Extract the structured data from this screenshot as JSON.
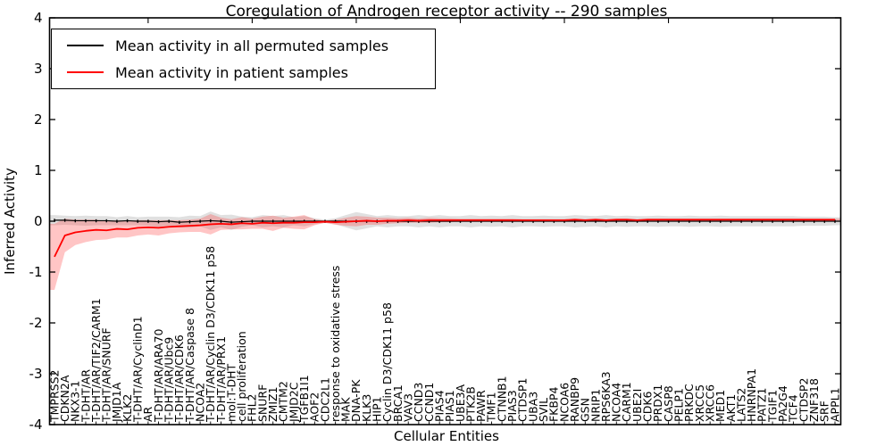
{
  "title": "Coregulation of Androgen receptor activity -- 290 samples",
  "legend": [
    {
      "label": "Mean activity in all permuted samples",
      "color": "#000000"
    },
    {
      "label": "Mean activity in patient samples",
      "color": "#ff0000"
    }
  ],
  "chart_data": {
    "type": "line",
    "title": "Coregulation of Androgen receptor activity -- 290 samples",
    "xlabel": "Cellular Entities",
    "ylabel": "Inferred Activity",
    "ylim": [
      -4,
      4
    ],
    "yticks": [
      "4",
      "3",
      "2",
      "1",
      "0",
      "-1",
      "-2",
      "-3",
      "-4"
    ],
    "ytick_values": [
      4,
      3,
      2,
      1,
      0,
      -1,
      -2,
      -3,
      -4
    ],
    "grid": false,
    "legend_position": "upper left",
    "categories": [
      "TMPRSS2",
      "CDKN2A",
      "NKX3-1",
      "T-DHT/AR",
      "T-DHT/AR/TIF2/CARM1",
      "T-DHT/AR/SNURF",
      "JMJD1A",
      "KLK2",
      "T-DHT/AR/CyclinD1",
      "AR",
      "T-DHT/AR/ARA70",
      "T-DHT/AR/Ubc9",
      "T-DHT/AR/CDK6",
      "T-DHT/AR/Caspase 8",
      "NCOA2",
      "T-DHT/AR/Cyclin D3/CDK11 p58",
      "T-DHT/AR/PRX1",
      "mol:T-DHT",
      "cell proliferation",
      "FHL2",
      "SNURF",
      "ZMIZ1",
      "CMTM2",
      "JMJD2C",
      "TGFB1I1",
      "AOF2",
      "CDC2L1",
      "response to oxidative stress",
      "MAK",
      "DNA-PK",
      "KLK3",
      "HIP1",
      "Cyclin D3/CDK11 p58",
      "BRCA1",
      "VAV3",
      "CCND3",
      "CCND1",
      "PIAS4",
      "PIAS1",
      "UBE3A",
      "PTK2B",
      "PAWR",
      "TMF1",
      "CTNNB1",
      "PIAS3",
      "CTDSP1",
      "UBA3",
      "SVIL",
      "FKBP4",
      "NCOA6",
      "RANBP9",
      "GSN",
      "NRIP1",
      "RPS6KA3",
      "NCOA4",
      "CARM1",
      "UBE2I",
      "CDK6",
      "PRDX1",
      "CASP8",
      "PELP1",
      "PRKDC",
      "XRCC5",
      "XRCC6",
      "MED1",
      "AKT1",
      "LATS2",
      "HNRNPA1",
      "PATZ1",
      "TGIF1",
      "PA2G4",
      "TCF4",
      "CTDSP2",
      "ZNF318",
      "SRF",
      "APPL1"
    ],
    "series": [
      {
        "name": "Mean activity in all permuted samples",
        "color": "#000000",
        "band_color": "#999999",
        "band_opacity": 0.3,
        "values": [
          0.02,
          0.02,
          0.01,
          0.01,
          0.01,
          0.01,
          0.0,
          0.01,
          0.0,
          0.0,
          -0.01,
          0.0,
          -0.02,
          -0.01,
          0.0,
          0.01,
          0.0,
          -0.02,
          -0.01,
          0.0,
          0.0,
          0.0,
          0.0,
          0.0,
          0.0,
          0.0,
          0.0,
          0.0,
          0.0,
          0.0,
          0.0,
          0.0,
          0.0,
          0.0,
          0.0,
          0.0,
          0.0,
          0.0,
          0.0,
          0.0,
          0.0,
          0.0,
          0.0,
          0.0,
          0.0,
          0.0,
          0.0,
          0.0,
          0.0,
          0.0,
          0.0,
          0.0,
          0.0,
          0.0,
          0.0,
          0.0,
          0.0,
          0.0,
          0.0,
          0.0,
          0.0,
          0.0,
          0.0,
          0.0,
          0.0,
          0.0,
          0.0,
          0.0,
          0.0,
          0.0,
          0.0,
          0.0,
          0.0,
          0.0,
          0.0,
          0.0
        ],
        "band_halfwidth": [
          0.1,
          0.09,
          0.09,
          0.1,
          0.09,
          0.09,
          0.08,
          0.09,
          0.08,
          0.09,
          0.1,
          0.09,
          0.1,
          0.12,
          0.1,
          0.18,
          0.12,
          0.15,
          0.1,
          0.08,
          0.12,
          0.1,
          0.12,
          0.08,
          0.1,
          0.06,
          0.03,
          0.06,
          0.12,
          0.18,
          0.14,
          0.1,
          0.12,
          0.1,
          0.1,
          0.12,
          0.1,
          0.12,
          0.1,
          0.1,
          0.12,
          0.1,
          0.11,
          0.1,
          0.12,
          0.1,
          0.1,
          0.11,
          0.1,
          0.1,
          0.12,
          0.11,
          0.1,
          0.12,
          0.1,
          0.11,
          0.1,
          0.1,
          0.11,
          0.1,
          0.1,
          0.11,
          0.1,
          0.1,
          0.11,
          0.1,
          0.1,
          0.1,
          0.1,
          0.1,
          0.1,
          0.1,
          0.09,
          0.09,
          0.09,
          0.08
        ]
      },
      {
        "name": "Mean activity in patient samples",
        "color": "#ff0000",
        "band_color": "#ff4040",
        "band_opacity": 0.3,
        "values": [
          -0.7,
          -0.28,
          -0.22,
          -0.19,
          -0.17,
          -0.18,
          -0.15,
          -0.16,
          -0.13,
          -0.12,
          -0.13,
          -0.11,
          -0.1,
          -0.09,
          -0.08,
          -0.06,
          -0.05,
          -0.06,
          -0.04,
          -0.05,
          -0.03,
          -0.04,
          -0.03,
          -0.03,
          -0.02,
          -0.02,
          -0.01,
          -0.02,
          -0.01,
          0.0,
          0.01,
          0.0,
          0.01,
          0.01,
          0.02,
          0.01,
          0.02,
          0.02,
          0.02,
          0.02,
          0.02,
          0.02,
          0.02,
          0.02,
          0.02,
          0.02,
          0.02,
          0.02,
          0.02,
          0.02,
          0.03,
          0.02,
          0.03,
          0.02,
          0.03,
          0.03,
          0.02,
          0.03,
          0.03,
          0.03,
          0.03,
          0.03,
          0.03,
          0.03,
          0.03,
          0.03,
          0.03,
          0.03,
          0.03,
          0.03,
          0.03,
          0.03,
          0.03,
          0.03,
          0.03,
          0.03
        ],
        "band_halfwidth": [
          0.65,
          0.33,
          0.25,
          0.22,
          0.2,
          0.18,
          0.17,
          0.16,
          0.15,
          0.14,
          0.15,
          0.13,
          0.12,
          0.12,
          0.13,
          0.2,
          0.12,
          0.1,
          0.12,
          0.1,
          0.12,
          0.15,
          0.1,
          0.12,
          0.14,
          0.06,
          0.02,
          0.05,
          0.08,
          0.1,
          0.08,
          0.07,
          0.06,
          0.05,
          0.05,
          0.04,
          0.05,
          0.04,
          0.04,
          0.03,
          0.03,
          0.03,
          0.03,
          0.03,
          0.03,
          0.02,
          0.02,
          0.02,
          0.02,
          0.02,
          0.02,
          0.02,
          0.02,
          0.02,
          0.02,
          0.02,
          0.02,
          0.02,
          0.02,
          0.02,
          0.02,
          0.02,
          0.02,
          0.02,
          0.02,
          0.02,
          0.02,
          0.02,
          0.02,
          0.02,
          0.02,
          0.02,
          0.02,
          0.02,
          0.02,
          0.02
        ]
      }
    ]
  }
}
